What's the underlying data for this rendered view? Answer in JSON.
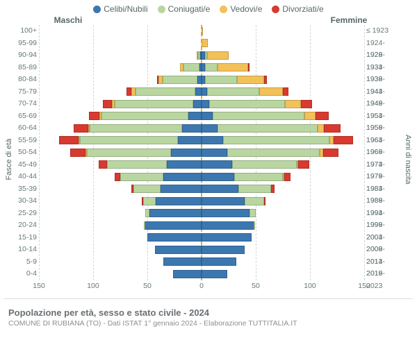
{
  "legend": [
    {
      "label": "Celibi/Nubili",
      "color": "#3c78af"
    },
    {
      "label": "Coniugati/e",
      "color": "#b9d6a1"
    },
    {
      "label": "Vedovi/e",
      "color": "#f2c159"
    },
    {
      "label": "Divorziati/e",
      "color": "#d83a2f"
    }
  ],
  "side_titles": {
    "male": "Maschi",
    "female": "Femmine"
  },
  "y_axis_left_title": "Fasce di età",
  "y_axis_right_title": "Anni di nascita",
  "x_axis": {
    "max": 150,
    "ticks": [
      150,
      100,
      50,
      0,
      50,
      100,
      150
    ]
  },
  "footer": {
    "title": "Popolazione per età, sesso e stato civile - 2024",
    "subtitle": "COMUNE DI RUBIANA (TO) - Dati ISTAT 1° gennaio 2024 - Elaborazione TUTTITALIA.IT"
  },
  "colors": {
    "celibi": "#3c78af",
    "coniugati": "#b9d6a1",
    "vedovi": "#f2c159",
    "divorziati": "#d83a2f",
    "grid": "#cfd6da",
    "center": "#e8a840"
  },
  "rows": [
    {
      "age": "100+",
      "birth": "≤ 1923",
      "m": [
        0,
        0,
        0,
        0
      ],
      "f": [
        0,
        0,
        1,
        0
      ]
    },
    {
      "age": "95-99",
      "birth": "1924-1928",
      "m": [
        0,
        0,
        0,
        0
      ],
      "f": [
        0,
        0,
        6,
        0
      ]
    },
    {
      "age": "90-94",
      "birth": "1929-1933",
      "m": [
        1,
        2,
        1,
        0
      ],
      "f": [
        3,
        2,
        20,
        0
      ]
    },
    {
      "age": "85-89",
      "birth": "1934-1938",
      "m": [
        2,
        15,
        3,
        0
      ],
      "f": [
        3,
        12,
        28,
        1
      ]
    },
    {
      "age": "80-84",
      "birth": "1939-1943",
      "m": [
        4,
        32,
        4,
        1
      ],
      "f": [
        3,
        30,
        25,
        2
      ]
    },
    {
      "age": "75-79",
      "birth": "1944-1948",
      "m": [
        6,
        55,
        4,
        4
      ],
      "f": [
        5,
        48,
        22,
        5
      ]
    },
    {
      "age": "70-74",
      "birth": "1949-1953",
      "m": [
        8,
        72,
        3,
        8
      ],
      "f": [
        7,
        70,
        15,
        10
      ]
    },
    {
      "age": "65-69",
      "birth": "1954-1958",
      "m": [
        12,
        80,
        2,
        10
      ],
      "f": [
        10,
        85,
        10,
        12
      ]
    },
    {
      "age": "60-64",
      "birth": "1959-1963",
      "m": [
        18,
        85,
        1,
        14
      ],
      "f": [
        15,
        92,
        6,
        15
      ]
    },
    {
      "age": "55-59",
      "birth": "1964-1968",
      "m": [
        22,
        90,
        1,
        18
      ],
      "f": [
        20,
        98,
        4,
        18
      ]
    },
    {
      "age": "50-54",
      "birth": "1969-1973",
      "m": [
        28,
        78,
        1,
        14
      ],
      "f": [
        24,
        85,
        3,
        14
      ]
    },
    {
      "age": "45-49",
      "birth": "1974-1978",
      "m": [
        32,
        55,
        0,
        8
      ],
      "f": [
        28,
        60,
        1,
        10
      ]
    },
    {
      "age": "40-44",
      "birth": "1979-1983",
      "m": [
        35,
        40,
        0,
        5
      ],
      "f": [
        30,
        45,
        1,
        6
      ]
    },
    {
      "age": "35-39",
      "birth": "1984-1988",
      "m": [
        38,
        25,
        0,
        2
      ],
      "f": [
        34,
        30,
        0,
        3
      ]
    },
    {
      "age": "30-34",
      "birth": "1989-1993",
      "m": [
        42,
        12,
        0,
        1
      ],
      "f": [
        40,
        18,
        0,
        1
      ]
    },
    {
      "age": "25-29",
      "birth": "1994-1998",
      "m": [
        48,
        4,
        0,
        0
      ],
      "f": [
        44,
        6,
        0,
        0
      ]
    },
    {
      "age": "20-24",
      "birth": "1999-2003",
      "m": [
        52,
        1,
        0,
        0
      ],
      "f": [
        48,
        1,
        0,
        0
      ]
    },
    {
      "age": "15-19",
      "birth": "2004-2008",
      "m": [
        50,
        0,
        0,
        0
      ],
      "f": [
        46,
        0,
        0,
        0
      ]
    },
    {
      "age": "10-14",
      "birth": "2009-2013",
      "m": [
        43,
        0,
        0,
        0
      ],
      "f": [
        40,
        0,
        0,
        0
      ]
    },
    {
      "age": "5-9",
      "birth": "2014-2018",
      "m": [
        35,
        0,
        0,
        0
      ],
      "f": [
        32,
        0,
        0,
        0
      ]
    },
    {
      "age": "0-4",
      "birth": "2019-2023",
      "m": [
        26,
        0,
        0,
        0
      ],
      "f": [
        24,
        0,
        0,
        0
      ]
    }
  ]
}
